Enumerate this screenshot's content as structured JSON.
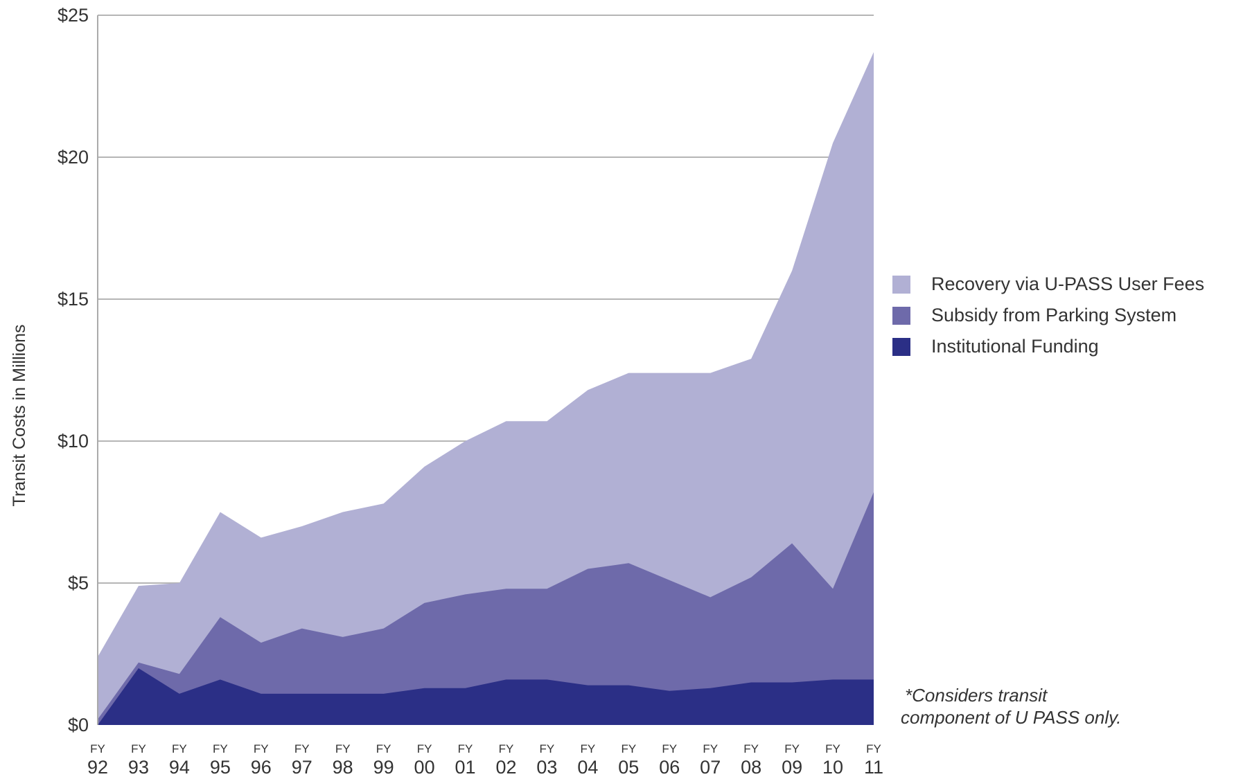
{
  "chart_data": {
    "type": "area",
    "stacked": true,
    "ylabel": "Transit Costs in Millions",
    "ylim": [
      0,
      25
    ],
    "y_ticks": [
      "$0",
      "$5",
      "$10",
      "$15",
      "$20",
      "$25"
    ],
    "y_tick_values": [
      0,
      5,
      10,
      15,
      20,
      25
    ],
    "grid": "horizontal",
    "legend_position": "right",
    "categories": [
      "FY 92",
      "FY 93",
      "FY 94",
      "FY 95",
      "FY 96",
      "FY 97",
      "FY 98",
      "FY 99",
      "FY 00",
      "FY 01",
      "FY 02",
      "FY 03",
      "FY 04",
      "FY 05",
      "FY 06",
      "FY 07",
      "FY 08",
      "FY 09",
      "FY 10",
      "FY 11"
    ],
    "tick_top": [
      "FY",
      "FY",
      "FY",
      "FY",
      "FY",
      "FY",
      "FY",
      "FY",
      "FY",
      "FY",
      "FY",
      "FY",
      "FY",
      "FY",
      "FY",
      "FY",
      "FY",
      "FY",
      "FY",
      "FY"
    ],
    "tick_bottom": [
      "92",
      "93",
      "94",
      "95",
      "96",
      "97",
      "98",
      "99",
      "00",
      "01",
      "02",
      "03",
      "04",
      "05",
      "06",
      "07",
      "08",
      "09",
      "10",
      "11"
    ],
    "series": [
      {
        "name": "Institutional Funding",
        "color": "#2b2f86",
        "values": [
          0.0,
          2.0,
          1.1,
          1.6,
          1.1,
          1.1,
          1.1,
          1.1,
          1.3,
          1.3,
          1.6,
          1.6,
          1.4,
          1.4,
          1.2,
          1.3,
          1.5,
          1.5,
          1.6,
          1.6
        ]
      },
      {
        "name": "Subsidy from Parking System",
        "color": "#6e6aaa",
        "values": [
          0.2,
          0.2,
          0.7,
          2.2,
          1.8,
          2.3,
          2.0,
          2.3,
          3.0,
          3.3,
          3.2,
          3.2,
          4.1,
          4.3,
          3.9,
          3.2,
          3.7,
          4.9,
          3.2,
          6.6
        ]
      },
      {
        "name": "Recovery via U-PASS User Fees",
        "color": "#b1b0d4",
        "values": [
          2.2,
          2.7,
          3.2,
          3.7,
          3.7,
          3.6,
          4.4,
          4.4,
          4.8,
          5.4,
          5.9,
          5.9,
          6.3,
          6.7,
          7.3,
          7.9,
          7.7,
          9.6,
          15.7,
          15.5
        ]
      }
    ],
    "legend_order": [
      "Recovery via U-PASS User Fees",
      "Subsidy from Parking System",
      "Institutional Funding"
    ],
    "annotation": {
      "line1": "Considers transit",
      "line2": "component of U PASS only.",
      "marker": "*"
    }
  }
}
